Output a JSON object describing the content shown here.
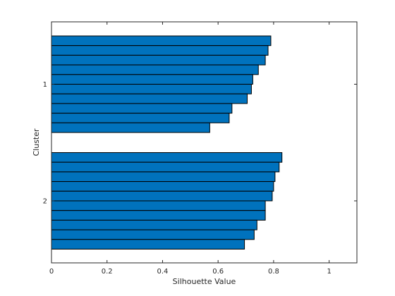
{
  "chart_data": {
    "type": "bar",
    "orientation": "horizontal",
    "title": "",
    "xlabel": "Silhouette Value",
    "ylabel": "Cluster",
    "xlim": [
      0,
      1.1
    ],
    "xticks": [
      0,
      0.2,
      0.4,
      0.6,
      0.8,
      1
    ],
    "grid": false,
    "bar_color": "#0072BD",
    "edge_color": "#000000",
    "clusters": [
      {
        "label": "1",
        "values": [
          0.79,
          0.78,
          0.77,
          0.745,
          0.725,
          0.72,
          0.705,
          0.65,
          0.64,
          0.57
        ]
      },
      {
        "label": "2",
        "values": [
          0.83,
          0.82,
          0.805,
          0.8,
          0.795,
          0.77,
          0.77,
          0.74,
          0.73,
          0.695
        ]
      }
    ]
  }
}
